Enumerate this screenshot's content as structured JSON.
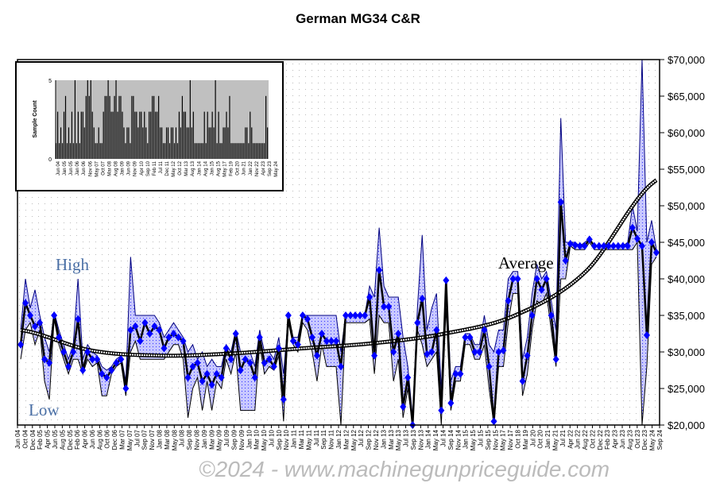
{
  "chart_data": {
    "type": "line",
    "title": "German MG34 C&R",
    "ylabel": "",
    "xlabel": "",
    "ylim": [
      20000,
      70000
    ],
    "y_ticks": [
      "$20,000",
      "$25,000",
      "$30,000",
      "$35,000",
      "$40,000",
      "$45,000",
      "$50,000",
      "$55,000",
      "$60,000",
      "$65,000",
      "$70,000"
    ],
    "y_tick_values": [
      20000,
      25000,
      30000,
      35000,
      40000,
      45000,
      50000,
      55000,
      60000,
      65000,
      70000
    ],
    "grid": true,
    "annotations": {
      "high": "High",
      "low": "Low",
      "average": "Average"
    },
    "watermark": "©2024 - www.machinegunpriceguide.com",
    "x_tick_labels": [
      "Jun 04",
      "Oct 04",
      "Dec 04",
      "Feb 05",
      "Apr 05",
      "Jun 05",
      "Aug 05",
      "Dec 05",
      "Feb 06",
      "Apr 06",
      "Jun 06",
      "Aug 06",
      "Oct 06",
      "Dec 06",
      "Mar 07",
      "May 07",
      "Jul 07",
      "Sep 07",
      "Nov 07",
      "Jan 08",
      "Mar 08",
      "May 08",
      "Jul 08",
      "Sep 08",
      "Nov 08",
      "Jan 09",
      "Mar 09",
      "May 09",
      "Jul 09",
      "Sep 09",
      "Nov 09",
      "Jan 10",
      "Mar 10",
      "May 10",
      "Jul 10",
      "Sep 10",
      "Nov 10",
      "Jan 11",
      "Mar 11",
      "May 11",
      "Jul 11",
      "Sep 11",
      "Nov 11",
      "Jan 12",
      "Mar 12",
      "May 12",
      "Jul 12",
      "Sep 12",
      "Nov 12",
      "Jan 13",
      "Mar 13",
      "May 13",
      "Jul 13",
      "Sep 13",
      "Nov 13",
      "Jan 14",
      "May 14",
      "Jul 14",
      "Sep 14",
      "Nov 14",
      "Jan 15",
      "May 15",
      "Jul 15",
      "Sep 15",
      "Nov 15",
      "May 17",
      "Nov 17",
      "Oct 18",
      "Mar 19",
      "Jul 20",
      "Oct 20",
      "Jan 21",
      "May 21",
      "Jul 21",
      "Apr 22",
      "Jun 22",
      "Aug 22",
      "Oct 22",
      "Dec 22",
      "Feb 23",
      "Apr 23",
      "Jun 23",
      "Aug 23",
      "Oct 23",
      "Dec 23",
      "May 24",
      "Sep 24"
    ],
    "series": [
      {
        "name": "Average",
        "color": "#0000ff",
        "values": [
          31000,
          36700,
          35000,
          33500,
          34000,
          29000,
          28500,
          35000,
          32000,
          30000,
          28000,
          30000,
          34500,
          27500,
          30000,
          29000,
          29000,
          27000,
          26500,
          27500,
          28500,
          29000,
          25000,
          33000,
          33500,
          31500,
          34000,
          32500,
          33500,
          33000,
          30500,
          32000,
          32500,
          32000,
          31500,
          26500,
          28000,
          28500,
          26000,
          27000,
          25500,
          27000,
          26500,
          30500,
          29000,
          32500,
          27500,
          29000,
          28500,
          26500,
          32000,
          28500,
          29000,
          28000,
          30500,
          23500,
          35000,
          31500,
          31000,
          35000,
          34500,
          32000,
          29500,
          32500,
          31500,
          31500,
          31500,
          28000,
          35000,
          35000,
          35000,
          35000,
          35000,
          37500,
          29500,
          41200,
          36200,
          36200,
          30000,
          32500,
          22500,
          26500,
          20000,
          34000,
          37300,
          29700,
          30000,
          33000,
          22000,
          39800,
          23000,
          27000,
          27000,
          32000,
          32000,
          30000,
          30000,
          33000,
          28000,
          20500,
          30000,
          30200,
          37000,
          40000,
          40000,
          26000,
          29500,
          35000,
          40000,
          38500,
          40000,
          35000,
          29000,
          50500,
          42500,
          44800,
          44600,
          44500,
          44500,
          45400,
          44500,
          44500,
          44500,
          44500,
          44500,
          44500,
          44500,
          44500,
          47000,
          45500,
          44500,
          32300,
          45000,
          43600
        ]
      },
      {
        "name": "High",
        "color": "#000080",
        "values": [
          33000,
          40000,
          36000,
          38500,
          35000,
          32000,
          30000,
          35500,
          33000,
          31000,
          29000,
          31000,
          40000,
          29000,
          31000,
          30000,
          29500,
          28000,
          27500,
          28000,
          29000,
          29500,
          26000,
          43000,
          35000,
          35000,
          35000,
          35000,
          35000,
          34000,
          32000,
          33000,
          34000,
          33000,
          32000,
          30000,
          31000,
          29000,
          30000,
          28000,
          29000,
          28000,
          28000,
          31000,
          30000,
          33000,
          30000,
          30000,
          30000,
          28000,
          33000,
          30000,
          30000,
          29000,
          32000,
          27000,
          35000,
          32000,
          32000,
          35000,
          35000,
          35000,
          35000,
          35000,
          35000,
          35000,
          35000,
          30000,
          35000,
          35000,
          35000,
          35000,
          35000,
          39000,
          37500,
          47000,
          39000,
          37500,
          37500,
          37500,
          32000,
          28000,
          21000,
          36000,
          46000,
          33000,
          36000,
          38000,
          25000,
          40000,
          26000,
          28000,
          28000,
          32500,
          32500,
          31000,
          31000,
          35000,
          31000,
          30000,
          33000,
          33000,
          40000,
          41000,
          41000,
          29000,
          32000,
          38000,
          42000,
          40000,
          41000,
          37000,
          33000,
          62000,
          45000,
          45000,
          45000,
          44500,
          45000,
          45500,
          44500,
          44500,
          44500,
          44500,
          44500,
          44500,
          44500,
          45000,
          50000,
          46500,
          70000,
          45000,
          48000,
          44000
        ]
      },
      {
        "name": "Low",
        "color": "#000000",
        "values": [
          29000,
          33000,
          34000,
          31000,
          33000,
          26000,
          23500,
          34500,
          31000,
          29000,
          27000,
          29000,
          29000,
          27000,
          29000,
          28000,
          28500,
          24000,
          24000,
          27000,
          28000,
          28500,
          24000,
          30000,
          31500,
          29000,
          29000,
          29000,
          29000,
          29000,
          29000,
          30000,
          31000,
          31000,
          29000,
          21000,
          25000,
          26500,
          22000,
          26000,
          22000,
          26000,
          25000,
          29000,
          27000,
          30000,
          22000,
          22000,
          22000,
          22000,
          31000,
          27000,
          28000,
          27500,
          29500,
          20500,
          34000,
          31000,
          30000,
          34000,
          33000,
          30000,
          26000,
          31000,
          28000,
          28000,
          28000,
          20000,
          34000,
          34000,
          34000,
          34000,
          34000,
          34500,
          27000,
          35000,
          34000,
          34000,
          26000,
          29000,
          21000,
          25000,
          20000,
          33000,
          31000,
          28000,
          29000,
          30000,
          20000,
          36000,
          22000,
          26000,
          26000,
          31000,
          31000,
          29000,
          29000,
          31000,
          25000,
          20000,
          28000,
          28000,
          34000,
          38000,
          38000,
          24000,
          27000,
          33000,
          37000,
          36500,
          38000,
          33000,
          28000,
          40000,
          40000,
          44500,
          44000,
          44000,
          44000,
          45000,
          44000,
          44000,
          44000,
          44000,
          44000,
          44000,
          44000,
          44000,
          44000,
          45000,
          20000,
          28000,
          42000,
          43000
        ]
      },
      {
        "name": "Trend",
        "color": "#000000",
        "values": [
          33000,
          30200,
          29500,
          29800,
          30500,
          31200,
          32500,
          35000,
          41000,
          53500
        ]
      }
    ],
    "inset": {
      "type": "bar",
      "ylabel": "Sample Count",
      "ylim": [
        0,
        5
      ],
      "y_ticks": [
        "0",
        "5"
      ],
      "x_tick_labels": [
        "Jun 04",
        "Jan 05",
        "Jun 05",
        "Jan 06",
        "Jun 06",
        "Nov 06",
        "May 07",
        "Oct 07",
        "Mar 08",
        "Aug 08",
        "Jan 09",
        "Jun 09",
        "Nov 09",
        "Apr 10",
        "Sep 10",
        "Feb 11",
        "Jul 11",
        "Dec 11",
        "May 12",
        "Oct 12",
        "Mar 13",
        "Aug 13",
        "Jan 14",
        "Aug 14",
        "Jan 15",
        "Aug 15",
        "May 17",
        "Feb 19",
        "Oct 20",
        "Jun 21",
        "Jan 22",
        "Nov 22",
        "Apr 23",
        "Sep 23",
        "May 24"
      ],
      "values": [
        1,
        3,
        1,
        2,
        1,
        3,
        4,
        1,
        2,
        1,
        3,
        1,
        5,
        1,
        3,
        1,
        3,
        3,
        2,
        4,
        5,
        4,
        5,
        3,
        2,
        1,
        1,
        2,
        1,
        1,
        3,
        4,
        4,
        5,
        4,
        3,
        3,
        4,
        5,
        3,
        4,
        4,
        3,
        2,
        1,
        2,
        2,
        1,
        4,
        4,
        3,
        3,
        2,
        3,
        3,
        2,
        3,
        2,
        1,
        3,
        3,
        4,
        4,
        3,
        3,
        4,
        2,
        2,
        1,
        1,
        2,
        2,
        1,
        2,
        2,
        1,
        2,
        1,
        3,
        2,
        4,
        3,
        3,
        2,
        2,
        5,
        2,
        3,
        1,
        1,
        1,
        1,
        1,
        1,
        3,
        1,
        3,
        2,
        2,
        3,
        2,
        5,
        1,
        3,
        1,
        1,
        2,
        2,
        3,
        2,
        4,
        1,
        1,
        1,
        1,
        1,
        1,
        1,
        1,
        1,
        2,
        2,
        1,
        3,
        2,
        1,
        1,
        1,
        1,
        1,
        1,
        1,
        1,
        4,
        2
      ]
    }
  }
}
